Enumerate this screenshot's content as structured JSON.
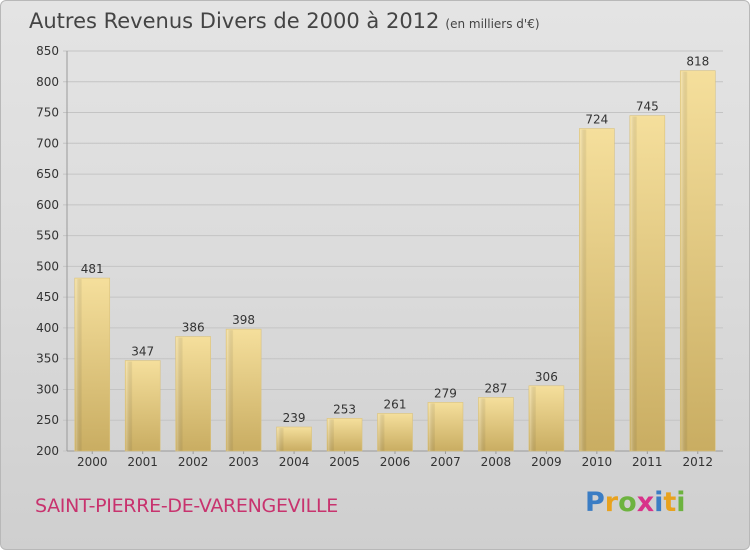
{
  "title": "Autres Revenus Divers de 2000 à 2012",
  "unit": "(en milliers d'€)",
  "commune": "SAINT-PIERRE-DE-VARENGEVILLE",
  "logo": {
    "letters": [
      "P",
      "r",
      "o",
      "x",
      "i",
      "t",
      "i"
    ],
    "colors": [
      "#3b7dc4",
      "#e8a21e",
      "#6db33f",
      "#d8328a",
      "#3b7dc4",
      "#e8a21e",
      "#6db33f"
    ]
  },
  "colors": {
    "bar_light": "#f5df9c",
    "bar_dark": "#c9ad62",
    "grid": "#c4c4c4",
    "axis_text": "#333333"
  },
  "chart_data": {
    "type": "bar",
    "categories": [
      "2000",
      "2001",
      "2002",
      "2003",
      "2004",
      "2005",
      "2006",
      "2007",
      "2008",
      "2009",
      "2010",
      "2011",
      "2012"
    ],
    "values": [
      481,
      347,
      386,
      398,
      239,
      253,
      261,
      279,
      287,
      306,
      724,
      745,
      818
    ],
    "yticks": [
      200,
      250,
      300,
      350,
      400,
      450,
      500,
      550,
      600,
      650,
      700,
      750,
      800,
      850
    ],
    "ylim": [
      200,
      850
    ],
    "grid": true
  }
}
